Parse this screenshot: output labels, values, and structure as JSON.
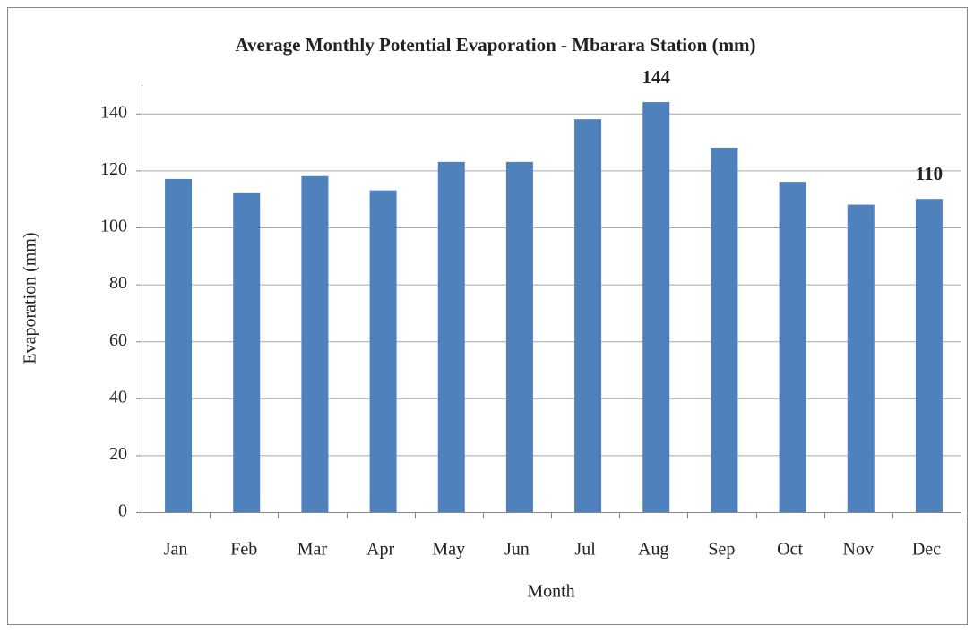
{
  "chart_data": {
    "type": "bar",
    "title": "Average Monthly Potential Evaporation - Mbarara Station (mm)",
    "x_label": "Month",
    "y_label": "Evaporation (mm)",
    "categories": [
      "Jan",
      "Feb",
      "Mar",
      "Apr",
      "May",
      "Jun",
      "Jul",
      "Aug",
      "Sep",
      "Oct",
      "Nov",
      "Dec"
    ],
    "values": [
      117,
      112,
      118,
      113,
      123,
      123,
      138,
      144,
      128,
      116,
      108,
      110
    ],
    "value_labels": [
      null,
      null,
      null,
      null,
      null,
      null,
      null,
      "144",
      null,
      null,
      null,
      "110"
    ],
    "color": "#4f81bd",
    "ylim": [
      0,
      150
    ],
    "yticks": [
      0,
      20,
      40,
      60,
      80,
      100,
      120,
      140
    ],
    "grid": true
  }
}
